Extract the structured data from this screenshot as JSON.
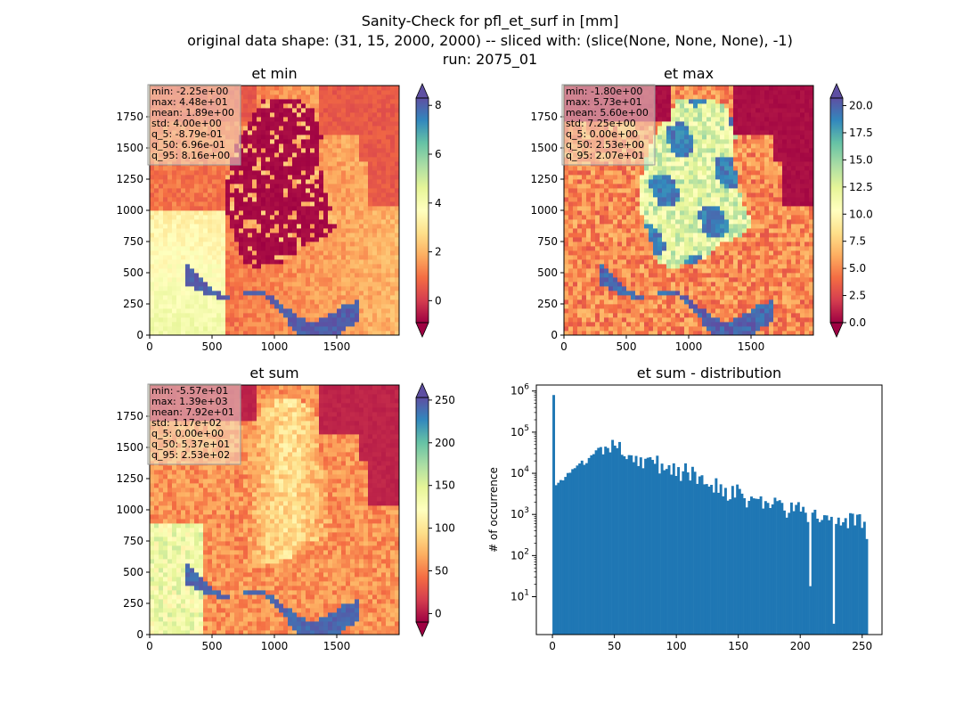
{
  "figure": {
    "title_lines": [
      "Sanity-Check for pfl_et_surf in [mm]",
      "original data shape: (31, 15, 2000, 2000) -- sliced with: (slice(None, None, None), -1)",
      "run: 2075_01"
    ]
  },
  "colormap": {
    "name": "Spectral",
    "stops": [
      "#9e0142",
      "#d53e4f",
      "#f46d43",
      "#fdae61",
      "#fee08b",
      "#ffffbf",
      "#e6f598",
      "#abdda4",
      "#66c2a5",
      "#3288bd",
      "#5e4fa2"
    ]
  },
  "chart_data": [
    {
      "type": "heatmap",
      "title": "et min",
      "x_ticks": [
        "0",
        "500",
        "1000",
        "1500"
      ],
      "x_tick_values": [
        0,
        500,
        1000,
        1500
      ],
      "y_ticks": [
        "0",
        "250",
        "500",
        "750",
        "1000",
        "1250",
        "1500",
        "1750"
      ],
      "y_tick_values": [
        0,
        250,
        500,
        750,
        1000,
        1250,
        1500,
        1750
      ],
      "xlim": [
        0,
        2000
      ],
      "ylim": [
        0,
        2000
      ],
      "colorbar": {
        "ticks": [
          "0",
          "2",
          "4",
          "6",
          "8"
        ],
        "tick_values": [
          0,
          2,
          4,
          6,
          8
        ],
        "range": [
          -0.9,
          8.3
        ],
        "extend": "both"
      },
      "stats": [
        "min: -2.25e+00",
        "max: 4.48e+01",
        "mean: 1.89e+00",
        "std: 4.00e+00",
        "q_5: -8.79e-01",
        "q_50: 6.96e-01",
        "q_95: 8.16e+00"
      ],
      "stats_box_color": "#f5f5dc"
    },
    {
      "type": "heatmap",
      "title": "et max",
      "x_ticks": [
        "0",
        "500",
        "1000",
        "1500"
      ],
      "x_tick_values": [
        0,
        500,
        1000,
        1500
      ],
      "y_ticks": [
        "0",
        "250",
        "500",
        "750",
        "1000",
        "1250",
        "1500",
        "1750"
      ],
      "y_tick_values": [
        0,
        250,
        500,
        750,
        1000,
        1250,
        1500,
        1750
      ],
      "xlim": [
        0,
        2000
      ],
      "ylim": [
        0,
        2000
      ],
      "colorbar": {
        "ticks": [
          "0.0",
          "2.5",
          "5.0",
          "7.5",
          "10.0",
          "12.5",
          "15.0",
          "17.5",
          "20.0"
        ],
        "tick_values": [
          0,
          2.5,
          5,
          7.5,
          10,
          12.5,
          15,
          17.5,
          20
        ],
        "range": [
          0,
          20.7
        ],
        "extend": "both"
      },
      "stats": [
        "min: -1.80e+00",
        "max: 5.73e+01",
        "mean: 5.60e+00",
        "std: 7.25e+00",
        "q_5: 0.00e+00",
        "q_50: 2.53e+00",
        "q_95: 2.07e+01"
      ],
      "stats_box_color": "#f5f5dc"
    },
    {
      "type": "heatmap",
      "title": "et sum",
      "x_ticks": [
        "0",
        "500",
        "1000",
        "1500"
      ],
      "x_tick_values": [
        0,
        500,
        1000,
        1500
      ],
      "y_ticks": [
        "0",
        "250",
        "500",
        "750",
        "1000",
        "1250",
        "1500",
        "1750"
      ],
      "y_tick_values": [
        0,
        250,
        500,
        750,
        1000,
        1250,
        1500,
        1750
      ],
      "xlim": [
        0,
        2000
      ],
      "ylim": [
        0,
        2000
      ],
      "colorbar": {
        "ticks": [
          "0",
          "50",
          "100",
          "150",
          "200",
          "250"
        ],
        "tick_values": [
          0,
          50,
          100,
          150,
          200,
          250
        ],
        "range": [
          -10,
          253
        ],
        "extend": "both"
      },
      "stats": [
        "min: -5.57e+01",
        "max: 1.39e+03",
        "mean: 7.92e+01",
        "std: 1.17e+02",
        "q_5: 0.00e+00",
        "q_50: 5.37e+01",
        "q_95: 2.53e+02"
      ],
      "stats_box_color": "#f5f5dc"
    },
    {
      "type": "bar",
      "title": "et sum - distribution",
      "ylabel": "# of occurrence",
      "yscale": "log",
      "bar_color": "#1f77b4",
      "x_ticks": [
        "0",
        "50",
        "100",
        "150",
        "200",
        "250"
      ],
      "x_tick_values": [
        0,
        50,
        100,
        150,
        200,
        250
      ],
      "xlim": [
        -13,
        266
      ],
      "y_ticks": [
        "10^1",
        "10^2",
        "10^3",
        "10^4",
        "10^5",
        "10^6"
      ],
      "y_tick_values": [
        10,
        100,
        1000,
        10000,
        100000,
        1000000
      ],
      "ylim": [
        1.2,
        1400000
      ],
      "bin_width": 1.9,
      "key_points": [
        [
          0,
          800000
        ],
        [
          1,
          4500
        ],
        [
          5,
          6000
        ],
        [
          15,
          10000
        ],
        [
          25,
          18000
        ],
        [
          35,
          28000
        ],
        [
          45,
          42000
        ],
        [
          50,
          46000
        ],
        [
          55,
          40000
        ],
        [
          65,
          25000
        ],
        [
          80,
          17000
        ],
        [
          95,
          15000
        ],
        [
          110,
          9000
        ],
        [
          125,
          7000
        ],
        [
          140,
          4000
        ],
        [
          155,
          2500
        ],
        [
          170,
          2000
        ],
        [
          185,
          1500
        ],
        [
          200,
          1100
        ],
        [
          215,
          800
        ],
        [
          230,
          1000
        ],
        [
          245,
          700
        ],
        [
          253,
          400
        ]
      ],
      "outliers": [
        [
          207,
          18
        ],
        [
          226,
          2.2
        ]
      ]
    }
  ]
}
